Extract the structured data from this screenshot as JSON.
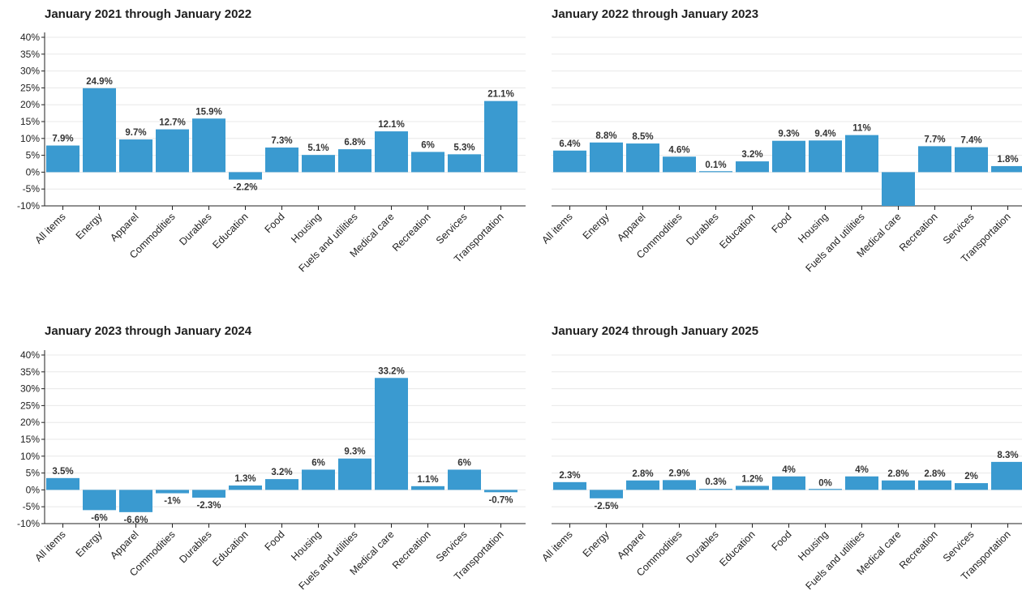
{
  "chart_data": [
    {
      "type": "bar",
      "title": "January 2021 through January 2022",
      "categories": [
        "All items",
        "Energy",
        "Apparel",
        "Commodities",
        "Durables",
        "Education",
        "Food",
        "Housing",
        "Fuels and utilities",
        "Medical care",
        "Recreation",
        "Services",
        "Transportation"
      ],
      "values": [
        7.9,
        24.9,
        9.7,
        12.7,
        15.9,
        -2.2,
        7.3,
        5.1,
        6.8,
        12.1,
        6,
        5.3,
        21.1
      ],
      "value_labels": [
        "7.9%",
        "24.9%",
        "9.7%",
        "12.7%",
        "15.9%",
        "-2.2%",
        "7.3%",
        "5.1%",
        "6.8%",
        "12.1%",
        "6%",
        "5.3%",
        "21.1%"
      ],
      "ylim": [
        -10,
        40
      ],
      "yticks": [
        -10,
        -5,
        0,
        5,
        10,
        15,
        20,
        25,
        30,
        35,
        40
      ],
      "ytick_labels": [
        "-10%",
        "-5%",
        "0%",
        "5%",
        "10%",
        "15%",
        "20%",
        "25%",
        "30%",
        "35%",
        "40%"
      ],
      "show_yaxis": true,
      "grid": true
    },
    {
      "type": "bar",
      "title": "January 2022 through January 2023",
      "categories": [
        "All items",
        "Energy",
        "Apparel",
        "Commodities",
        "Durables",
        "Education",
        "Food",
        "Housing",
        "Fuels and utilities",
        "Medical care",
        "Recreation",
        "Services",
        "Transportation"
      ],
      "values": [
        6.4,
        8.8,
        8.5,
        4.6,
        0.1,
        3.2,
        9.3,
        9.4,
        11,
        -10,
        7.7,
        7.4,
        1.8
      ],
      "value_labels": [
        "6.4%",
        "8.8%",
        "8.5%",
        "4.6%",
        "0.1%",
        "3.2%",
        "9.3%",
        "9.4%",
        "11%",
        "",
        "7.7%",
        "7.4%",
        "1.8%"
      ],
      "ylim": [
        -10,
        40
      ],
      "yticks": [
        -10,
        -5,
        0,
        5,
        10,
        15,
        20,
        25,
        30,
        35,
        40
      ],
      "ytick_labels": [],
      "show_yaxis": false,
      "grid": true
    },
    {
      "type": "bar",
      "title": "January 2023 through January 2024",
      "categories": [
        "All items",
        "Energy",
        "Apparel",
        "Commodities",
        "Durables",
        "Education",
        "Food",
        "Housing",
        "Fuels and utilities",
        "Medical care",
        "Recreation",
        "Services",
        "Transportation"
      ],
      "values": [
        3.5,
        -6,
        -6.6,
        -1,
        -2.3,
        1.3,
        3.2,
        6,
        9.3,
        33.2,
        1.1,
        6,
        -0.7
      ],
      "value_labels": [
        "3.5%",
        "-6%",
        "-6.6%",
        "-1%",
        "-2.3%",
        "1.3%",
        "3.2%",
        "6%",
        "9.3%",
        "33.2%",
        "1.1%",
        "6%",
        "-0.7%"
      ],
      "ylim": [
        -10,
        40
      ],
      "yticks": [
        -10,
        -5,
        0,
        5,
        10,
        15,
        20,
        25,
        30,
        35,
        40
      ],
      "ytick_labels": [
        "-10%",
        "-5%",
        "0%",
        "5%",
        "10%",
        "15%",
        "20%",
        "25%",
        "30%",
        "35%",
        "40%"
      ],
      "show_yaxis": true,
      "grid": true
    },
    {
      "type": "bar",
      "title": "January 2024 through January 2025",
      "categories": [
        "All items",
        "Energy",
        "Apparel",
        "Commodities",
        "Durables",
        "Education",
        "Food",
        "Housing",
        "Fuels and utilities",
        "Medical care",
        "Recreation",
        "Services",
        "Transportation"
      ],
      "values": [
        2.3,
        -2.5,
        2.8,
        2.9,
        0.3,
        1.2,
        4,
        0,
        4,
        2.8,
        2.8,
        2,
        8.3
      ],
      "value_labels": [
        "2.3%",
        "-2.5%",
        "2.8%",
        "2.9%",
        "0.3%",
        "1.2%",
        "4%",
        "0%",
        "4%",
        "2.8%",
        "2.8%",
        "2%",
        "8.3%"
      ],
      "ylim": [
        -10,
        40
      ],
      "yticks": [
        -10,
        -5,
        0,
        5,
        10,
        15,
        20,
        25,
        30,
        35,
        40
      ],
      "ytick_labels": [],
      "show_yaxis": false,
      "grid": true
    }
  ],
  "colors": {
    "bar": "#3a9ad0",
    "grid": "#e8e8e8",
    "axis": "#222222",
    "text": "#222222"
  }
}
